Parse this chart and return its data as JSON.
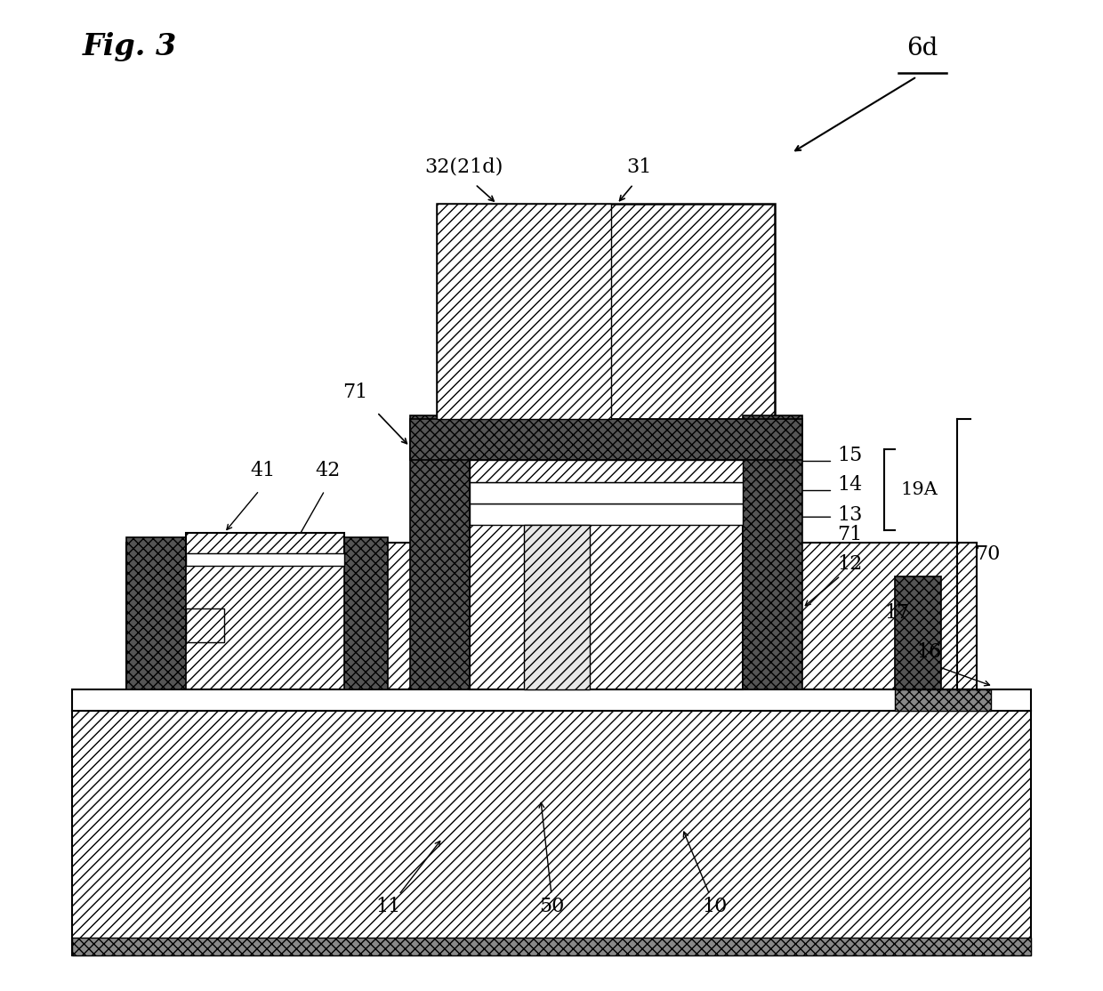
{
  "bg_color": "#ffffff",
  "fig_title": "Fig. 3",
  "label_6d": "6d",
  "labels": [
    "32(21d)",
    "31",
    "41",
    "42",
    "71",
    "71",
    "15",
    "14",
    "19A",
    "13",
    "70",
    "12",
    "17",
    "16",
    "11",
    "50",
    "10"
  ],
  "hatch_dense": "////",
  "hatch_light": "///",
  "hatch_dark": "xxxx"
}
